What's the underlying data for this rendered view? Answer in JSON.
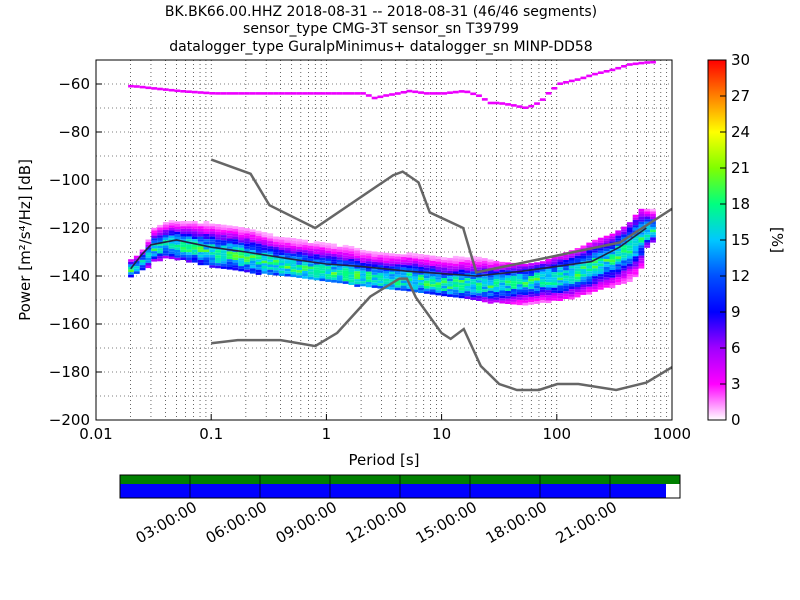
{
  "title": {
    "line1": "BK.BK66.00.HHZ   2018-08-31 -- 2018-08-31  (46/46 segments)",
    "line2": "sensor_type CMG-3T sensor_sn T39799",
    "line3": "datalogger_type GuralpMinimus+ datalogger_sn MINP-DD58"
  },
  "chart_data": [
    {
      "type": "heatmap",
      "xlabel": "Period [s]",
      "ylabel": "Power [m²/s⁴/Hz] [dB]",
      "xscale": "log",
      "xlim": [
        0.01,
        1000
      ],
      "ylim": [
        -200,
        -50
      ],
      "x_ticks": [
        "0.01",
        "0.1",
        "1",
        "10",
        "100",
        "1000"
      ],
      "y_ticks": [
        "−60",
        "−80",
        "−100",
        "−120",
        "−140",
        "−160",
        "−180",
        "−200"
      ],
      "grid": true,
      "colorbar": {
        "label": "[%]",
        "min": 0,
        "max": 30,
        "ticks": [
          "0",
          "3",
          "6",
          "9",
          "12",
          "15",
          "18",
          "21",
          "24",
          "27",
          "30"
        ],
        "colormap": [
          "#ffffff",
          "#ff00ff",
          "#a000ff",
          "#0000ff",
          "#0050ff",
          "#00c8ff",
          "#00ff80",
          "#80ff00",
          "#ffff00",
          "#ff8000",
          "#ff0000"
        ]
      },
      "noise_models": [
        {
          "periods": [
            0.1,
            0.17,
            0.4,
            0.8,
            1.24,
            2.4,
            4.3,
            5.0,
            6.0,
            10.0,
            12.0,
            15.6,
            21.9,
            31.6,
            45.0,
            70.0,
            101.0,
            154.0,
            328.0,
            600.0,
            1000.0
          ],
          "power": [
            -168,
            -166.7,
            -166.7,
            -169.2,
            -163.7,
            -148.6,
            -141.1,
            -141.1,
            -149.0,
            -163.8,
            -166.2,
            -162.1,
            -177.5,
            -185.0,
            -187.5,
            -187.5,
            -185.0,
            -185.0,
            -187.5,
            -184.4,
            -178.0
          ]
        },
        {
          "periods": [
            0.1,
            0.22,
            0.32,
            0.8,
            3.8,
            4.6,
            6.3,
            7.9,
            15.4,
            20.0,
            354.8,
            1000.0
          ],
          "power": [
            -91.5,
            -97.4,
            -110.5,
            -120.0,
            -98.0,
            -96.5,
            -101.0,
            -113.5,
            -120.0,
            -138.5,
            -126.0,
            -112.0
          ]
        }
      ],
      "median_curve": {
        "periods": [
          0.02,
          0.025,
          0.03,
          0.05,
          0.1,
          0.2,
          0.5,
          1,
          2,
          5,
          10,
          20,
          50,
          100,
          200,
          350,
          600
        ],
        "power": [
          -137,
          -131,
          -127,
          -125,
          -128,
          -130,
          -133,
          -135,
          -136,
          -138,
          -139,
          -140,
          -138,
          -136,
          -134,
          -128,
          -120
        ]
      },
      "psd_cloud": {
        "periods": [
          0.02,
          0.025,
          0.03,
          0.04,
          0.05,
          0.07,
          0.1,
          0.15,
          0.2,
          0.3,
          0.5,
          0.7,
          1,
          1.5,
          2,
          3,
          5,
          7,
          10,
          15,
          20,
          30,
          50,
          70,
          100,
          150,
          200,
          300,
          400,
          500,
          600
        ],
        "lower": [
          -140,
          -137,
          -134,
          -132,
          -133,
          -134,
          -136,
          -137,
          -138,
          -139,
          -140,
          -141,
          -142,
          -143,
          -144,
          -145,
          -146,
          -147,
          -148,
          -149,
          -150,
          -151,
          -152,
          -151,
          -150,
          -148,
          -146,
          -144,
          -142,
          -138,
          -125
        ],
        "upper": [
          -133,
          -128,
          -120,
          -117,
          -116,
          -116,
          -116,
          -117,
          -118,
          -120,
          -121,
          -122,
          -123,
          -124,
          -126,
          -127,
          -128,
          -129,
          -130,
          -131,
          -132,
          -134,
          -135,
          -134,
          -131,
          -128,
          -125,
          -122,
          -118,
          -112,
          -112
        ],
        "peak": [
          -137,
          -133,
          -128,
          -126,
          -127,
          -128,
          -130,
          -131,
          -132,
          -134,
          -136,
          -137,
          -138,
          -139,
          -140,
          -141,
          -141,
          -142,
          -143,
          -143,
          -143,
          -143,
          -142,
          -141,
          -140,
          -138,
          -135,
          -132,
          -128,
          -124,
          -120
        ]
      },
      "microseism_band": {
        "periods": [
          0.02,
          0.05,
          0.1,
          0.2,
          0.3,
          0.5,
          0.7,
          1,
          1.5,
          2,
          2.5,
          3,
          4,
          5,
          7,
          10,
          15,
          20,
          25,
          30,
          40,
          50,
          60,
          70,
          80,
          100,
          150,
          200,
          300,
          400,
          600
        ],
        "power": [
          -61,
          -63,
          -64,
          -64,
          -64,
          -64,
          -64,
          -64,
          -64,
          -64,
          -66,
          -65,
          -64,
          -63,
          -64,
          -64,
          -63,
          -65,
          -68,
          -68,
          -69,
          -70,
          -69,
          -67,
          -64,
          -60,
          -58,
          -56,
          -54,
          -52,
          -51
        ]
      }
    },
    {
      "type": "timeline",
      "time_ticks": [
        "03:00:00",
        "06:00:00",
        "09:00:00",
        "12:00:00",
        "15:00:00",
        "18:00:00",
        "21:00:00"
      ],
      "data_fraction": 0.975,
      "colors": {
        "green": "#008000",
        "blue": "#0000ff"
      }
    }
  ]
}
